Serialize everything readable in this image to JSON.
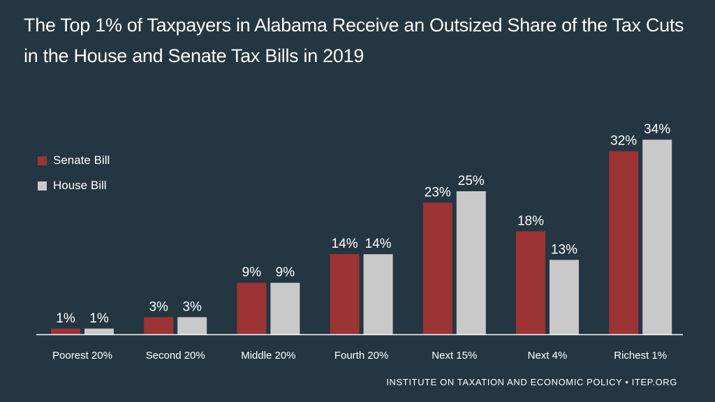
{
  "colors": {
    "background": "#243641",
    "senate": "#9b3433",
    "house": "#c9c9c9",
    "axis": "#ffffff",
    "text": "#ffffff"
  },
  "chart_data": {
    "type": "bar",
    "title": "The Top 1% of Taxpayers in Alabama Receive an Outsized Share of the Tax Cuts in the House and Senate Tax Bills in 2019",
    "title_lines": [
      "The Top 1% of Taxpayers in Alabama Receive an Outsized Share of the Tax Cuts",
      "in the House and Senate Tax Bills in 2019"
    ],
    "xlabel": "",
    "ylabel": "",
    "ylim": [
      0,
      40
    ],
    "grid": false,
    "legend_position": "left",
    "categories": [
      "Poorest 20%",
      "Second 20%",
      "Middle 20%",
      "Fourth 20%",
      "Next 15%",
      "Next 4%",
      "Richest 1%"
    ],
    "series": [
      {
        "name": "Senate Bill",
        "color": "#9b3433",
        "values": [
          1,
          3,
          9,
          14,
          23,
          18,
          32
        ],
        "labels": [
          "1%",
          "3%",
          "9%",
          "14%",
          "23%",
          "18%",
          "32%"
        ]
      },
      {
        "name": "House Bill",
        "color": "#c9c9c9",
        "values": [
          1,
          3,
          9,
          14,
          25,
          13,
          34
        ],
        "labels": [
          "1%",
          "3%",
          "9%",
          "14%",
          "25%",
          "13%",
          "34%"
        ]
      }
    ]
  },
  "footer": "INSTITUTE ON TAXATION AND ECONOMIC POLICY • ITEP.ORG"
}
